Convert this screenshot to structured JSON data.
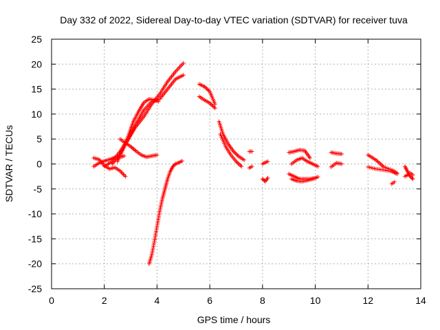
{
  "chart_data": {
    "type": "scatter",
    "title": "Day 332 of 2022, Sidereal Day-to-day VTEC variation (SDTVAR) for receiver tuva",
    "xlabel": "GPS time / hours",
    "ylabel": "SDTVAR / TECUs",
    "xlim": [
      0,
      14
    ],
    "ylim": [
      -25,
      25
    ],
    "xticks": [
      0,
      2,
      4,
      6,
      8,
      10,
      12,
      14
    ],
    "yticks": [
      -25,
      -20,
      -15,
      -10,
      -5,
      0,
      5,
      10,
      15,
      20,
      25
    ],
    "grid": true,
    "marker": "+",
    "colors": {
      "series": "#ff0000",
      "grid": "#b0b0b0",
      "axes": "#000000"
    },
    "series": [
      {
        "segments": [
          {
            "x": [
              1.6,
              1.8,
              2.0,
              2.2,
              2.4,
              2.6,
              2.75
            ],
            "y": [
              -0.5,
              0.2,
              0.6,
              0.9,
              1.3,
              1.4,
              1.6
            ]
          },
          {
            "x": [
              1.6,
              1.8,
              2.0,
              2.2,
              2.4,
              2.6,
              2.8
            ],
            "y": [
              1.2,
              0.9,
              -0.3,
              -1.0,
              -0.7,
              -1.4,
              -2.5
            ]
          },
          {
            "x": [
              2.0,
              2.3,
              2.6,
              2.9,
              3.2,
              3.5,
              3.8,
              4.1,
              4.4,
              4.7,
              5.0
            ],
            "y": [
              -0.5,
              0.5,
              2.5,
              5.0,
              7.5,
              9.5,
              12.0,
              14.0,
              16.5,
              18.5,
              20.2
            ]
          },
          {
            "x": [
              2.3,
              2.6,
              2.9,
              3.2,
              3.5,
              3.8,
              4.1,
              4.4,
              4.7,
              5.0
            ],
            "y": [
              0.0,
              2.0,
              4.8,
              8.0,
              10.8,
              12.5,
              13.0,
              15.0,
              17.0,
              17.8
            ]
          },
          {
            "x": [
              2.5,
              2.7,
              2.9,
              3.1,
              3.3,
              3.5,
              3.7,
              3.9,
              4.05
            ],
            "y": [
              0.5,
              3.0,
              5.5,
              8.5,
              10.5,
              12.3,
              13.0,
              12.8,
              12.5
            ]
          },
          {
            "x": [
              2.6,
              2.8,
              3.0,
              3.2,
              3.4,
              3.6,
              3.8,
              4.0
            ],
            "y": [
              5.0,
              4.2,
              3.5,
              2.6,
              1.8,
              1.4,
              1.6,
              1.8
            ]
          },
          {
            "x": [
              3.7,
              3.8,
              3.9,
              4.0,
              4.1,
              4.2,
              4.3,
              4.4,
              4.5,
              4.6,
              4.7,
              4.8,
              4.95
            ],
            "y": [
              -20.0,
              -18.2,
              -15.5,
              -12.5,
              -9.5,
              -7.0,
              -5.0,
              -3.0,
              -1.5,
              -0.5,
              0.0,
              0.2,
              0.6
            ]
          },
          {
            "x": [
              5.6,
              5.8,
              6.0,
              6.2
            ],
            "y": [
              16.0,
              15.5,
              14.5,
              12.0
            ]
          },
          {
            "x": [
              5.6,
              5.8,
              6.0,
              6.2
            ],
            "y": [
              13.5,
              12.8,
              12.2,
              11.2
            ]
          },
          {
            "x": [
              6.35,
              6.5,
              6.7,
              6.9,
              7.1,
              7.3
            ],
            "y": [
              8.5,
              6.0,
              4.0,
              2.5,
              1.5,
              0.8
            ]
          },
          {
            "x": [
              6.4,
              6.6,
              6.8,
              7.0,
              7.2
            ],
            "y": [
              6.0,
              3.5,
              1.8,
              0.5,
              -0.5
            ]
          },
          {
            "x": [
              7.5,
              7.6
            ],
            "y": [
              2.5,
              2.5
            ]
          },
          {
            "x": [
              7.5,
              7.6
            ],
            "y": [
              -0.8,
              -0.5
            ]
          },
          {
            "x": [
              8.0,
              8.1,
              8.2
            ],
            "y": [
              -3.0,
              -3.5,
              -2.8
            ]
          },
          {
            "x": [
              8.0,
              8.1,
              8.2
            ],
            "y": [
              0.0,
              0.3,
              0.5
            ]
          },
          {
            "x": [
              9.0,
              9.2,
              9.4,
              9.6,
              9.8
            ],
            "y": [
              2.3,
              2.5,
              2.8,
              2.7,
              1.2
            ]
          },
          {
            "x": [
              9.1,
              9.3,
              9.5,
              9.7,
              9.9,
              10.1
            ],
            "y": [
              0.0,
              0.8,
              1.2,
              0.5,
              0.0,
              -0.5
            ]
          },
          {
            "x": [
              9.0,
              9.2,
              9.4,
              9.6,
              9.8,
              10.0
            ],
            "y": [
              -2.0,
              -2.5,
              -3.0,
              -3.0,
              -3.0,
              -2.8
            ]
          },
          {
            "x": [
              9.1,
              9.3,
              9.5,
              9.7,
              9.9,
              10.1
            ],
            "y": [
              -3.0,
              -3.4,
              -3.5,
              -3.3,
              -3.0,
              -2.6
            ]
          },
          {
            "x": [
              10.6,
              10.8,
              11.0
            ],
            "y": [
              2.3,
              2.1,
              2.0
            ]
          },
          {
            "x": [
              10.6,
              10.8,
              11.0
            ],
            "y": [
              -0.6,
              0.2,
              0.0
            ]
          },
          {
            "x": [
              12.0,
              12.3,
              12.6,
              12.9,
              13.1
            ],
            "y": [
              1.8,
              0.8,
              -0.6,
              -1.2,
              -1.8
            ]
          },
          {
            "x": [
              12.0,
              12.3,
              12.6,
              12.9,
              13.1
            ],
            "y": [
              -0.6,
              -1.0,
              -1.2,
              -1.5,
              -2.0
            ]
          },
          {
            "x": [
              12.9,
              13.0
            ],
            "y": [
              -4.0,
              -3.6
            ]
          },
          {
            "x": [
              13.4,
              13.5,
              13.6,
              13.7
            ],
            "y": [
              -0.5,
              -1.5,
              -2.5,
              -3.0
            ]
          },
          {
            "x": [
              13.4,
              13.5,
              13.6,
              13.7
            ],
            "y": [
              -2.5,
              -2.2,
              -1.8,
              -2.2
            ]
          }
        ]
      }
    ]
  }
}
